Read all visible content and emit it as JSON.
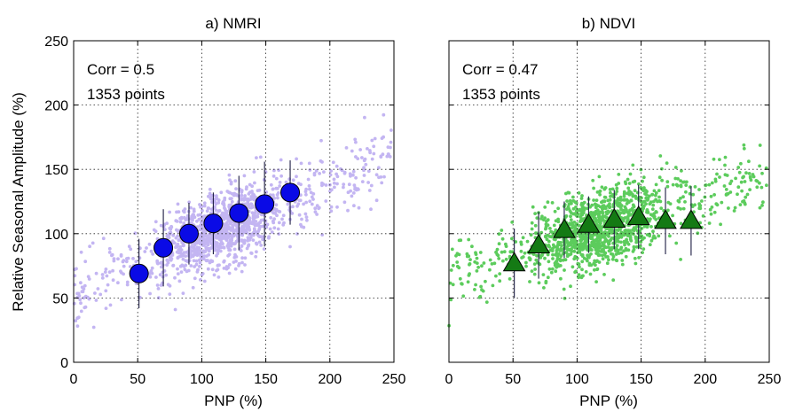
{
  "figure": {
    "ylabel": "Relative Seasonal Amplitude (%)"
  },
  "colors": {
    "nmri_scatter": "#c3b5f2",
    "nmri_marker": "#0a0ae6",
    "ndvi_scatter": "#5ccc5c",
    "ndvi_marker": "#147a14",
    "errorbar": "#1a1a40"
  },
  "chart_data": [
    {
      "type": "scatter",
      "panel": "a",
      "title": "a)  NMRI",
      "xlabel": "PNP (%)",
      "ylabel": "Relative Seasonal Amplitude (%)",
      "xlim": [
        0,
        250
      ],
      "ylim": [
        0,
        250
      ],
      "xticks": [
        0,
        50,
        100,
        150,
        200,
        250
      ],
      "yticks": [
        0,
        50,
        100,
        150,
        200,
        250
      ],
      "grid": true,
      "annotations": [
        "Corr = 0.5",
        "1353 points"
      ],
      "n_points": 1353,
      "cloud_fit": {
        "slope": 0.42,
        "intercept": 55,
        "spread": 26
      },
      "binned": {
        "marker": "circle",
        "x": [
          51,
          70,
          90,
          109,
          129,
          149,
          169
        ],
        "y": [
          69,
          89,
          100,
          108,
          116,
          123,
          132
        ],
        "err": [
          27,
          30,
          24,
          24,
          29,
          33,
          25
        ]
      }
    },
    {
      "type": "scatter",
      "panel": "b",
      "title": "b)  NDVI",
      "xlabel": "PNP (%)",
      "xlim": [
        0,
        250
      ],
      "ylim": [
        0,
        250
      ],
      "xticks": [
        0,
        50,
        100,
        150,
        200,
        250
      ],
      "yticks": [
        0,
        50,
        100,
        150,
        200,
        250
      ],
      "grid": true,
      "annotations": [
        "Corr = 0.47",
        "1353 points"
      ],
      "n_points": 1353,
      "cloud_fit": {
        "slope": 0.3,
        "intercept": 68,
        "spread": 27
      },
      "binned": {
        "marker": "triangle",
        "x": [
          51,
          70,
          90,
          109,
          129,
          148,
          169,
          189
        ],
        "y": [
          77,
          91,
          103,
          107,
          111,
          113,
          110,
          110
        ],
        "err": [
          27,
          26,
          22,
          22,
          23,
          25,
          26,
          27
        ]
      }
    }
  ]
}
